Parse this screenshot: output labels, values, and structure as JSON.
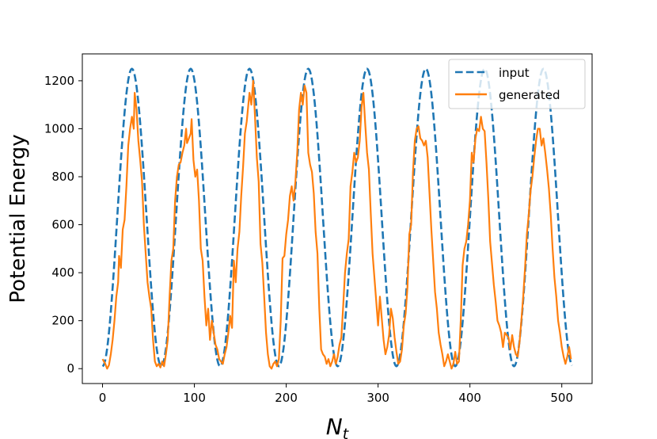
{
  "chart_data": {
    "type": "line",
    "title": "",
    "xlabel_base": "N",
    "xlabel_sub": "t",
    "ylabel": "Potential Energy",
    "xlim": [
      -22,
      533
    ],
    "ylim": [
      -62,
      1312
    ],
    "xticks": [
      0,
      100,
      200,
      300,
      400,
      500
    ],
    "yticks": [
      0,
      200,
      400,
      600,
      800,
      1000,
      1200
    ],
    "grid": false,
    "legend_position": "top-right",
    "series": [
      {
        "name": "input",
        "style": "dashed",
        "color": "#1f77b4",
        "period": 64,
        "peak_x": 32,
        "min": 10,
        "max": 1250,
        "x_range": [
          0,
          511
        ]
      },
      {
        "name": "generated",
        "style": "solid",
        "color": "#ff7f0e",
        "points": [
          [
            0,
            40
          ],
          [
            3,
            20
          ],
          [
            5,
            0
          ],
          [
            7,
            15
          ],
          [
            9,
            60
          ],
          [
            11,
            120
          ],
          [
            13,
            200
          ],
          [
            15,
            300
          ],
          [
            17,
            360
          ],
          [
            18,
            470
          ],
          [
            20,
            420
          ],
          [
            22,
            580
          ],
          [
            24,
            620
          ],
          [
            26,
            760
          ],
          [
            28,
            930
          ],
          [
            30,
            1000
          ],
          [
            32,
            1050
          ],
          [
            34,
            1000
          ],
          [
            35,
            1150
          ],
          [
            37,
            1080
          ],
          [
            39,
            950
          ],
          [
            41,
            870
          ],
          [
            43,
            780
          ],
          [
            45,
            600
          ],
          [
            47,
            480
          ],
          [
            49,
            360
          ],
          [
            51,
            300
          ],
          [
            53,
            250
          ],
          [
            55,
            120
          ],
          [
            57,
            30
          ],
          [
            59,
            10
          ],
          [
            61,
            20
          ],
          [
            63,
            5
          ],
          [
            65,
            30
          ],
          [
            67,
            10
          ],
          [
            69,
            60
          ],
          [
            71,
            120
          ],
          [
            73,
            300
          ],
          [
            75,
            450
          ],
          [
            77,
            500
          ],
          [
            79,
            700
          ],
          [
            81,
            800
          ],
          [
            83,
            850
          ],
          [
            85,
            860
          ],
          [
            87,
            900
          ],
          [
            89,
            930
          ],
          [
            91,
            1000
          ],
          [
            92,
            940
          ],
          [
            94,
            960
          ],
          [
            96,
            980
          ],
          [
            97,
            1040
          ],
          [
            99,
            870
          ],
          [
            101,
            800
          ],
          [
            103,
            830
          ],
          [
            105,
            700
          ],
          [
            107,
            500
          ],
          [
            109,
            450
          ],
          [
            111,
            300
          ],
          [
            113,
            180
          ],
          [
            115,
            250
          ],
          [
            117,
            120
          ],
          [
            119,
            200
          ],
          [
            121,
            150
          ],
          [
            123,
            100
          ],
          [
            125,
            80
          ],
          [
            127,
            40
          ],
          [
            129,
            30
          ],
          [
            131,
            20
          ],
          [
            133,
            60
          ],
          [
            135,
            90
          ],
          [
            137,
            150
          ],
          [
            139,
            220
          ],
          [
            141,
            170
          ],
          [
            143,
            450
          ],
          [
            145,
            360
          ],
          [
            147,
            500
          ],
          [
            149,
            570
          ],
          [
            151,
            720
          ],
          [
            153,
            840
          ],
          [
            155,
            980
          ],
          [
            157,
            1030
          ],
          [
            158,
            1070
          ],
          [
            160,
            1150
          ],
          [
            162,
            1100
          ],
          [
            164,
            1200
          ],
          [
            166,
            1050
          ],
          [
            168,
            880
          ],
          [
            170,
            780
          ],
          [
            172,
            520
          ],
          [
            174,
            440
          ],
          [
            176,
            300
          ],
          [
            178,
            150
          ],
          [
            180,
            60
          ],
          [
            182,
            10
          ],
          [
            184,
            0
          ],
          [
            186,
            20
          ],
          [
            188,
            30
          ],
          [
            190,
            10
          ],
          [
            192,
            40
          ],
          [
            194,
            200
          ],
          [
            196,
            460
          ],
          [
            198,
            470
          ],
          [
            200,
            560
          ],
          [
            202,
            620
          ],
          [
            204,
            720
          ],
          [
            206,
            760
          ],
          [
            208,
            700
          ],
          [
            210,
            780
          ],
          [
            212,
            900
          ],
          [
            214,
            1080
          ],
          [
            216,
            1150
          ],
          [
            218,
            1100
          ],
          [
            220,
            1180
          ],
          [
            222,
            1150
          ],
          [
            224,
            900
          ],
          [
            226,
            850
          ],
          [
            228,
            820
          ],
          [
            230,
            730
          ],
          [
            232,
            570
          ],
          [
            234,
            480
          ],
          [
            236,
            250
          ],
          [
            238,
            80
          ],
          [
            240,
            60
          ],
          [
            242,
            50
          ],
          [
            244,
            20
          ],
          [
            246,
            40
          ],
          [
            248,
            10
          ],
          [
            250,
            30
          ],
          [
            252,
            60
          ],
          [
            254,
            20
          ],
          [
            256,
            50
          ],
          [
            258,
            100
          ],
          [
            260,
            130
          ],
          [
            262,
            260
          ],
          [
            264,
            400
          ],
          [
            266,
            480
          ],
          [
            268,
            540
          ],
          [
            270,
            760
          ],
          [
            272,
            820
          ],
          [
            274,
            900
          ],
          [
            276,
            860
          ],
          [
            278,
            880
          ],
          [
            280,
            950
          ],
          [
            282,
            1090
          ],
          [
            284,
            1150
          ],
          [
            286,
            1020
          ],
          [
            288,
            900
          ],
          [
            290,
            830
          ],
          [
            292,
            650
          ],
          [
            294,
            480
          ],
          [
            296,
            380
          ],
          [
            298,
            280
          ],
          [
            300,
            180
          ],
          [
            302,
            300
          ],
          [
            304,
            210
          ],
          [
            306,
            120
          ],
          [
            308,
            60
          ],
          [
            310,
            90
          ],
          [
            312,
            140
          ],
          [
            314,
            250
          ],
          [
            316,
            210
          ],
          [
            318,
            130
          ],
          [
            320,
            70
          ],
          [
            322,
            20
          ],
          [
            324,
            30
          ],
          [
            326,
            80
          ],
          [
            328,
            180
          ],
          [
            330,
            230
          ],
          [
            332,
            340
          ],
          [
            334,
            560
          ],
          [
            336,
            600
          ],
          [
            338,
            820
          ],
          [
            340,
            950
          ],
          [
            342,
            1000
          ],
          [
            344,
            1010
          ],
          [
            346,
            960
          ],
          [
            348,
            950
          ],
          [
            350,
            930
          ],
          [
            352,
            950
          ],
          [
            354,
            880
          ],
          [
            356,
            730
          ],
          [
            358,
            580
          ],
          [
            360,
            450
          ],
          [
            362,
            320
          ],
          [
            364,
            250
          ],
          [
            366,
            150
          ],
          [
            368,
            100
          ],
          [
            370,
            60
          ],
          [
            372,
            10
          ],
          [
            374,
            30
          ],
          [
            376,
            60
          ],
          [
            378,
            30
          ],
          [
            380,
            0
          ],
          [
            382,
            20
          ],
          [
            384,
            70
          ],
          [
            386,
            20
          ],
          [
            388,
            30
          ],
          [
            390,
            200
          ],
          [
            392,
            430
          ],
          [
            394,
            500
          ],
          [
            396,
            530
          ],
          [
            398,
            600
          ],
          [
            400,
            700
          ],
          [
            402,
            900
          ],
          [
            404,
            860
          ],
          [
            406,
            960
          ],
          [
            408,
            1000
          ],
          [
            410,
            990
          ],
          [
            412,
            1050
          ],
          [
            414,
            1000
          ],
          [
            416,
            990
          ],
          [
            418,
            860
          ],
          [
            420,
            710
          ],
          [
            422,
            530
          ],
          [
            424,
            440
          ],
          [
            426,
            350
          ],
          [
            428,
            280
          ],
          [
            430,
            200
          ],
          [
            432,
            180
          ],
          [
            434,
            150
          ],
          [
            436,
            90
          ],
          [
            438,
            150
          ],
          [
            440,
            140
          ],
          [
            442,
            130
          ],
          [
            444,
            80
          ],
          [
            446,
            140
          ],
          [
            448,
            90
          ],
          [
            450,
            60
          ],
          [
            452,
            50
          ],
          [
            454,
            110
          ],
          [
            456,
            200
          ],
          [
            458,
            300
          ],
          [
            460,
            420
          ],
          [
            462,
            560
          ],
          [
            464,
            640
          ],
          [
            466,
            740
          ],
          [
            468,
            800
          ],
          [
            470,
            880
          ],
          [
            472,
            950
          ],
          [
            474,
            1000
          ],
          [
            476,
            1000
          ],
          [
            478,
            930
          ],
          [
            480,
            960
          ],
          [
            482,
            900
          ],
          [
            484,
            830
          ],
          [
            486,
            750
          ],
          [
            488,
            640
          ],
          [
            490,
            500
          ],
          [
            492,
            380
          ],
          [
            494,
            300
          ],
          [
            496,
            200
          ],
          [
            498,
            150
          ],
          [
            500,
            90
          ],
          [
            502,
            50
          ],
          [
            504,
            20
          ],
          [
            506,
            50
          ],
          [
            508,
            90
          ],
          [
            510,
            40
          ]
        ]
      }
    ]
  }
}
